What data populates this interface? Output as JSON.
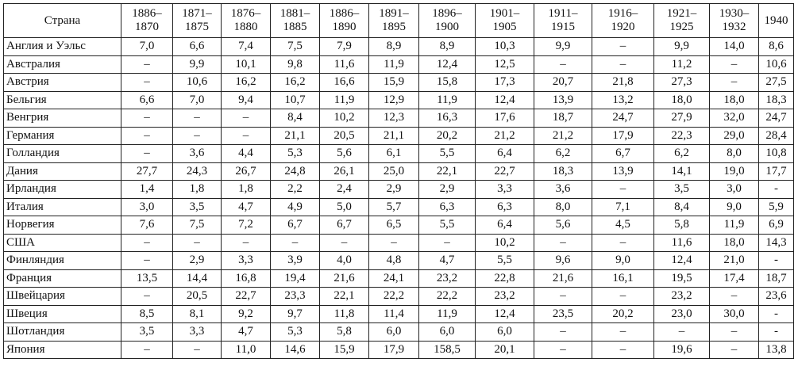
{
  "table": {
    "header": [
      "Страна",
      "1886–\n1870",
      "1871–\n1875",
      "1876–\n1880",
      "1881–\n1885",
      "1886–\n1890",
      "1891–\n1895",
      "1896–\n1900",
      "1901–\n1905",
      "1911–\n1915",
      "1916–\n1920",
      "1921–\n1925",
      "1930–\n1932",
      "1940"
    ],
    "rows": [
      [
        "Англия и Уэльс",
        "7,0",
        "6,6",
        "7,4",
        "7,5",
        "7,9",
        "8,9",
        "8,9",
        "10,3",
        "9,9",
        "–",
        "9,9",
        "14,0",
        "8,6"
      ],
      [
        "Австралия",
        "–",
        "9,9",
        "10,1",
        "9,8",
        "11,6",
        "11,9",
        "12,4",
        "12,5",
        "–",
        "–",
        "11,2",
        "–",
        "10,6"
      ],
      [
        "Австрия",
        "–",
        "10,6",
        "16,2",
        "16,2",
        "16,6",
        "15,9",
        "15,8",
        "17,3",
        "20,7",
        "21,8",
        "27,3",
        "–",
        "27,5"
      ],
      [
        "Бельгия",
        "6,6",
        "7,0",
        "9,4",
        "10,7",
        "11,9",
        "12,9",
        "11,9",
        "12,4",
        "13,9",
        "13,2",
        "18,0",
        "18,0",
        "18,3"
      ],
      [
        "Венгрия",
        "–",
        "–",
        "–",
        "8,4",
        "10,2",
        "12,3",
        "16,3",
        "17,6",
        "18,7",
        "24,7",
        "27,9",
        "32,0",
        "24,7"
      ],
      [
        "Германия",
        "–",
        "–",
        "–",
        "21,1",
        "20,5",
        "21,1",
        "20,2",
        "21,2",
        "21,2",
        "17,9",
        "22,3",
        "29,0",
        "28,4"
      ],
      [
        "Голландия",
        "–",
        "3,6",
        "4,4",
        "5,3",
        "5,6",
        "6,1",
        "5,5",
        "6,4",
        "6,2",
        "6,7",
        "6,2",
        "8,0",
        "10,8"
      ],
      [
        "Дания",
        "27,7",
        "24,3",
        "26,7",
        "24,8",
        "26,1",
        "25,0",
        "22,1",
        "22,7",
        "18,3",
        "13,9",
        "14,1",
        "19,0",
        "17,7"
      ],
      [
        "Ирландия",
        "1,4",
        "1,8",
        "1,8",
        "2,2",
        "2,4",
        "2,9",
        "2,9",
        "3,3",
        "3,6",
        "–",
        "3,5",
        "3,0",
        "-"
      ],
      [
        "Италия",
        "3,0",
        "3,5",
        "4,7",
        "4,9",
        "5,0",
        "5,7",
        "6,3",
        "6,3",
        "8,0",
        "7,1",
        "8,4",
        "9,0",
        "5,9"
      ],
      [
        "Норвегия",
        "7,6",
        "7,5",
        "7,2",
        "6,7",
        "6,7",
        "6,5",
        "5,5",
        "6,4",
        "5,6",
        "4,5",
        "5,8",
        "11,9",
        "6,9"
      ],
      [
        "США",
        "–",
        "–",
        "–",
        "–",
        "–",
        "–",
        "–",
        "10,2",
        "–",
        "–",
        "11,6",
        "18,0",
        "14,3"
      ],
      [
        "Финляндия",
        "–",
        "2,9",
        "3,3",
        "3,9",
        "4,0",
        "4,8",
        "4,7",
        "5,5",
        "9,6",
        "9,0",
        "12,4",
        "21,0",
        "-"
      ],
      [
        "Франция",
        "13,5",
        "14,4",
        "16,8",
        "19,4",
        "21,6",
        "24,1",
        "23,2",
        "22,8",
        "21,6",
        "16,1",
        "19,5",
        "17,4",
        "18,7"
      ],
      [
        "Швейцария",
        "–",
        "20,5",
        "22,7",
        "23,3",
        "22,1",
        "22,2",
        "22,2",
        "23,2",
        "–",
        "–",
        "23,2",
        "–",
        "23,6"
      ],
      [
        "Швеция",
        "8,5",
        "8,1",
        "9,2",
        "9,7",
        "11,8",
        "11,4",
        "11,9",
        "12,4",
        "23,5",
        "20,2",
        "23,0",
        "30,0",
        "-"
      ],
      [
        "Шотландия",
        "3,5",
        "3,3",
        "4,7",
        "5,3",
        "5,8",
        "6,0",
        "6,0",
        "6,0",
        "–",
        "–",
        "–",
        "–",
        "-"
      ],
      [
        "Япония",
        "–",
        "–",
        "11,0",
        "14,6",
        "15,9",
        "17,9",
        "158,5",
        "20,1",
        "–",
        "–",
        "19,6",
        "–",
        "13,8"
      ]
    ]
  }
}
